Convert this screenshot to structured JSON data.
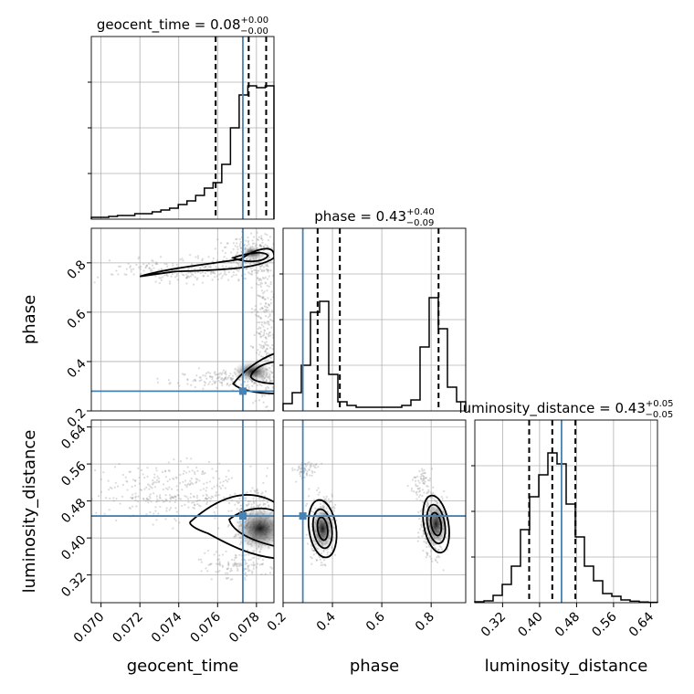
{
  "chart_data": {
    "type": "corner",
    "parameters": [
      {
        "key": "geocent_time",
        "label": "geocent_time",
        "range": [
          0.0695,
          0.0789
        ],
        "ticks": [
          0.07,
          0.072,
          0.074,
          0.076,
          0.078
        ],
        "tick_labels": [
          "0.070",
          "0.072",
          "0.074",
          "0.076",
          "0.078"
        ],
        "truth": 0.0773,
        "quantiles": [
          0.0759,
          0.0776,
          0.0785
        ],
        "title_main": "geocent_time = 0.08",
        "title_sup": "+0.00",
        "title_sub": "−0.00",
        "hist_bins": [
          0.01,
          0.01,
          0.015,
          0.02,
          0.02,
          0.03,
          0.03,
          0.04,
          0.05,
          0.06,
          0.08,
          0.1,
          0.13,
          0.17,
          0.2,
          0.3,
          0.5,
          0.68,
          0.73,
          0.72,
          0.73
        ],
        "hist_range": [
          0.0695,
          0.0789
        ]
      },
      {
        "key": "phase",
        "label": "phase",
        "range": [
          0.2,
          0.94
        ],
        "ticks": [
          0.2,
          0.4,
          0.6,
          0.8
        ],
        "tick_labels": [
          "0.2",
          "0.4",
          "0.6",
          "0.8"
        ],
        "truth": 0.28,
        "quantiles": [
          0.34,
          0.43,
          0.83
        ],
        "title_main": "phase = 0.43",
        "title_sup": "+0.40",
        "title_sub": "−0.09",
        "hist_bins": [
          0.04,
          0.1,
          0.25,
          0.54,
          0.6,
          0.2,
          0.05,
          0.03,
          0.02,
          0.02,
          0.02,
          0.02,
          0.02,
          0.03,
          0.06,
          0.35,
          0.62,
          0.45,
          0.13,
          0.05
        ],
        "hist_range": [
          0.2,
          0.94
        ]
      },
      {
        "key": "luminosity_distance",
        "label": "luminosity_distance",
        "range": [
          0.26,
          0.655
        ],
        "ticks": [
          0.32,
          0.4,
          0.48,
          0.56,
          0.64
        ],
        "tick_labels": [
          "0.32",
          "0.40",
          "0.48",
          "0.56",
          "0.64"
        ],
        "truth": 0.4475,
        "quantiles": [
          0.3775,
          0.4275,
          0.4775
        ],
        "title_main": "luminosity_distance = 0.43",
        "title_sup": "+0.05",
        "title_sub": "−0.05",
        "hist_bins": [
          0.005,
          0.01,
          0.04,
          0.1,
          0.2,
          0.4,
          0.58,
          0.7,
          0.82,
          0.76,
          0.54,
          0.36,
          0.2,
          0.12,
          0.05,
          0.035,
          0.015,
          0.008,
          0.004,
          0.002
        ],
        "hist_range": [
          0.26,
          0.655
        ]
      }
    ],
    "phase_ticks_left": [
      "0.2",
      "0.4",
      "0.6",
      "0.8"
    ],
    "phase_tick_values_left": [
      0.2,
      0.4,
      0.6,
      0.8
    ],
    "ld_ticks_left": [
      "0.32",
      "0.40",
      "0.48",
      "0.56",
      "0.64"
    ],
    "ld_tick_values_left": [
      0.32,
      0.4,
      0.48,
      0.56,
      0.64
    ],
    "grid": true
  }
}
